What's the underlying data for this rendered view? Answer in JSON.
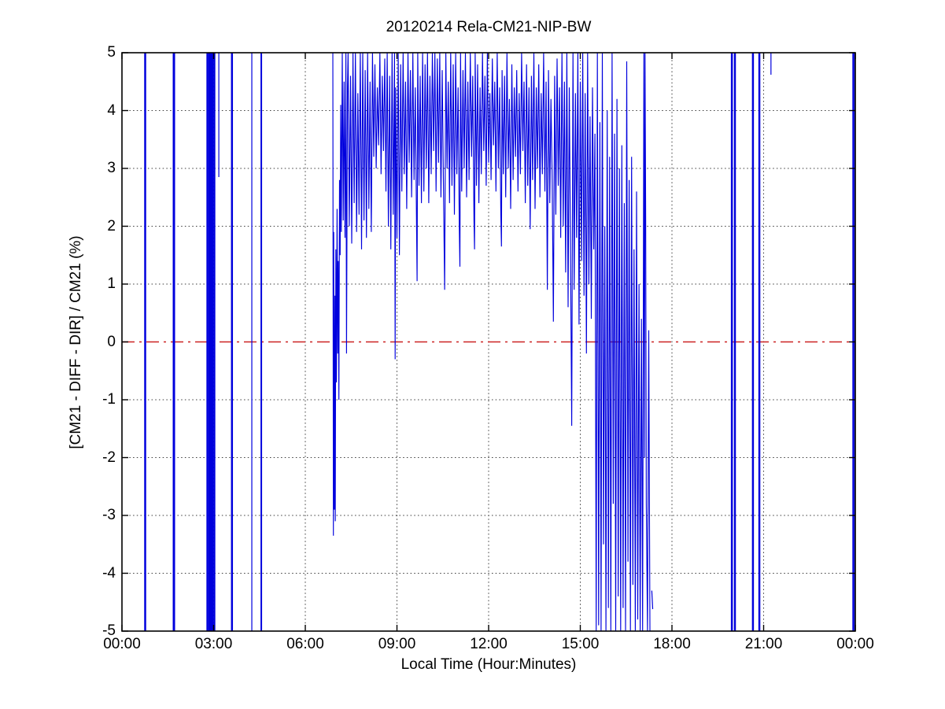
{
  "chart_data": {
    "type": "line",
    "title": "20120214 Rela-CM21-NIP-BW",
    "xlabel": "Local Time (Hour:Minutes)",
    "ylabel": "[CM21 - DIFF - DIR] / CM21 (%)",
    "xlim_hours": [
      0,
      24
    ],
    "ylim": [
      -5,
      5
    ],
    "x_tick_hours": [
      0,
      3,
      6,
      9,
      12,
      15,
      18,
      21,
      24
    ],
    "x_tick_labels": [
      "00:00",
      "03:00",
      "06:00",
      "09:00",
      "12:00",
      "15:00",
      "18:00",
      "21:00",
      "00:00"
    ],
    "y_tick_values": [
      -5,
      -4,
      -3,
      -2,
      -1,
      0,
      1,
      2,
      3,
      4,
      5
    ],
    "y_tick_labels": [
      "-5",
      "-4",
      "-3",
      "-2",
      "-1",
      "0",
      "1",
      "2",
      "3",
      "4",
      "5"
    ],
    "grid": "dotted",
    "legend": "none",
    "colors": {
      "series": "#0000dd",
      "zero_line": "#cc2222",
      "grid": "#3a3a3a",
      "axis": "#000000",
      "text": "#000000"
    },
    "zero_reference_line": {
      "y": 0,
      "style": "dash-dot"
    },
    "night_spikes": [
      {
        "hour": 0.76,
        "w": 2.5
      },
      {
        "hour": 1.7,
        "w": 3
      },
      {
        "hour": 2.79,
        "w": 2
      },
      {
        "hour": 2.85,
        "w": 3
      },
      {
        "hour": 2.91,
        "w": 2
      },
      {
        "hour": 2.97,
        "w": 3
      },
      {
        "hour": 3.03,
        "w": 2
      },
      {
        "hour": 3.6,
        "w": 2.5
      },
      {
        "hour": 4.25,
        "w": 1.2
      },
      {
        "hour": 4.56,
        "w": 2
      },
      {
        "hour": 19.96,
        "w": 2.5
      },
      {
        "hour": 20.06,
        "w": 2.5
      },
      {
        "hour": 20.65,
        "w": 2.5
      },
      {
        "hour": 20.86,
        "w": 2.5
      },
      {
        "hour": 23.93,
        "w": 2
      },
      {
        "hour": 23.99,
        "w": 2.5
      }
    ],
    "partial_spikes": [
      {
        "hour": 3.17,
        "from": 5,
        "to": 2.85,
        "w": 1.2
      },
      {
        "hour": 21.24,
        "from": 5,
        "to": 4.62,
        "w": 1.2
      }
    ],
    "isolated_segments": [
      {
        "x1": 17.34,
        "y1": -4.3,
        "x2": 17.37,
        "y2": -4.62
      }
    ],
    "day_series": [
      [
        6.9,
        5
      ],
      [
        6.92,
        -3.35
      ],
      [
        6.93,
        1.9
      ],
      [
        6.95,
        -2.9
      ],
      [
        6.97,
        0.8
      ],
      [
        6.98,
        -3.1
      ],
      [
        7.0,
        1.6
      ],
      [
        7.02,
        -0.7
      ],
      [
        7.04,
        2.3
      ],
      [
        7.06,
        -0.2
      ],
      [
        7.08,
        1.4
      ],
      [
        7.1,
        -1.0
      ],
      [
        7.12,
        2.8
      ],
      [
        7.14,
        1.5
      ],
      [
        7.16,
        4.1
      ],
      [
        7.18,
        1.9
      ],
      [
        7.21,
        5
      ],
      [
        7.24,
        2.1
      ],
      [
        7.27,
        4.5
      ],
      [
        7.3,
        1.8
      ],
      [
        7.33,
        5
      ],
      [
        7.35,
        -0.2
      ],
      [
        7.38,
        4.4
      ],
      [
        7.4,
        5
      ],
      [
        7.44,
        2.0
      ],
      [
        7.48,
        4.6
      ],
      [
        7.52,
        1.7
      ],
      [
        7.56,
        5
      ],
      [
        7.6,
        2.4
      ],
      [
        7.64,
        5
      ],
      [
        7.68,
        1.9
      ],
      [
        7.72,
        4.3
      ],
      [
        7.76,
        2.2
      ],
      [
        7.8,
        5
      ],
      [
        7.84,
        1.6
      ],
      [
        7.88,
        5
      ],
      [
        7.92,
        2.1
      ],
      [
        7.96,
        4.7
      ],
      [
        8.0,
        1.8
      ],
      [
        8.04,
        5
      ],
      [
        8.08,
        2.3
      ],
      [
        8.12,
        4.5
      ],
      [
        8.16,
        1.9
      ],
      [
        8.2,
        5
      ],
      [
        8.24,
        3.2
      ],
      [
        8.28,
        4.8
      ],
      [
        8.32,
        3.0
      ],
      [
        8.36,
        4.4
      ],
      [
        8.4,
        3.4
      ],
      [
        8.44,
        5
      ],
      [
        8.48,
        2.9
      ],
      [
        8.52,
        4.6
      ],
      [
        8.56,
        3.3
      ],
      [
        8.6,
        4.9
      ],
      [
        8.64,
        2.6
      ],
      [
        8.68,
        5
      ],
      [
        8.72,
        2.0
      ],
      [
        8.76,
        4.6
      ],
      [
        8.8,
        1.6
      ],
      [
        8.84,
        5
      ],
      [
        8.88,
        2.2
      ],
      [
        8.92,
        5
      ],
      [
        8.94,
        -0.3
      ],
      [
        8.96,
        4.4
      ],
      [
        9.0,
        1.8
      ],
      [
        9.04,
        5
      ],
      [
        9.08,
        1.5
      ],
      [
        9.12,
        4.8
      ],
      [
        9.16,
        2.6
      ],
      [
        9.2,
        5
      ],
      [
        9.24,
        2.9
      ],
      [
        9.28,
        4.5
      ],
      [
        9.32,
        2.3
      ],
      [
        9.36,
        5
      ],
      [
        9.4,
        3.1
      ],
      [
        9.44,
        4.7
      ],
      [
        9.48,
        2.5
      ],
      [
        9.52,
        5
      ],
      [
        9.56,
        2.8
      ],
      [
        9.6,
        4.4
      ],
      [
        9.64,
        2.0
      ],
      [
        9.66,
        1.05
      ],
      [
        9.68,
        5
      ],
      [
        9.72,
        2.7
      ],
      [
        9.76,
        4.6
      ],
      [
        9.8,
        2.4
      ],
      [
        9.84,
        5
      ],
      [
        9.88,
        2.6
      ],
      [
        9.92,
        4.8
      ],
      [
        9.96,
        3.0
      ],
      [
        10.0,
        5
      ],
      [
        10.04,
        2.4
      ],
      [
        10.08,
        4.6
      ],
      [
        10.12,
        2.9
      ],
      [
        10.16,
        5
      ],
      [
        10.2,
        3.3
      ],
      [
        10.24,
        5
      ],
      [
        10.28,
        2.6
      ],
      [
        10.32,
        4.9
      ],
      [
        10.36,
        3.1
      ],
      [
        10.4,
        5
      ],
      [
        10.44,
        2.5
      ],
      [
        10.48,
        4.7
      ],
      [
        10.52,
        2.8
      ],
      [
        10.56,
        0.9
      ],
      [
        10.6,
        5
      ],
      [
        10.64,
        3.0
      ],
      [
        10.68,
        4.5
      ],
      [
        10.72,
        2.4
      ],
      [
        10.76,
        5
      ],
      [
        10.8,
        2.7
      ],
      [
        10.84,
        4.8
      ],
      [
        10.88,
        2.2
      ],
      [
        10.92,
        5
      ],
      [
        10.96,
        2.9
      ],
      [
        11.0,
        4.4
      ],
      [
        11.04,
        2.0
      ],
      [
        11.06,
        1.3
      ],
      [
        11.08,
        5
      ],
      [
        11.12,
        2.6
      ],
      [
        11.16,
        4.7
      ],
      [
        11.2,
        3.0
      ],
      [
        11.24,
        5
      ],
      [
        11.28,
        2.5
      ],
      [
        11.32,
        4.5
      ],
      [
        11.36,
        2.8
      ],
      [
        11.4,
        5
      ],
      [
        11.44,
        3.2
      ],
      [
        11.48,
        4.6
      ],
      [
        11.52,
        2.1
      ],
      [
        11.54,
        1.6
      ],
      [
        11.56,
        5
      ],
      [
        11.6,
        2.7
      ],
      [
        11.64,
        4.8
      ],
      [
        11.68,
        2.4
      ],
      [
        11.72,
        4.4
      ],
      [
        11.76,
        2.9
      ],
      [
        11.8,
        5
      ],
      [
        11.84,
        3.3
      ],
      [
        11.88,
        4.6
      ],
      [
        11.92,
        2.7
      ],
      [
        11.96,
        5
      ],
      [
        12.0,
        3.1
      ],
      [
        12.04,
        4.3
      ],
      [
        12.08,
        2.8
      ],
      [
        12.12,
        4.9
      ],
      [
        12.16,
        3.4
      ],
      [
        12.2,
        4.5
      ],
      [
        12.24,
        2.6
      ],
      [
        12.28,
        5
      ],
      [
        12.32,
        3.0
      ],
      [
        12.36,
        4.4
      ],
      [
        12.4,
        2.2
      ],
      [
        12.42,
        1.65
      ],
      [
        12.44,
        4.7
      ],
      [
        12.48,
        2.9
      ],
      [
        12.52,
        4.6
      ],
      [
        12.56,
        2.5
      ],
      [
        12.6,
        5
      ],
      [
        12.64,
        3.0
      ],
      [
        12.68,
        4.2
      ],
      [
        12.72,
        2.3
      ],
      [
        12.76,
        4.8
      ],
      [
        12.8,
        2.8
      ],
      [
        12.84,
        4.4
      ],
      [
        12.88,
        3.2
      ],
      [
        12.92,
        4.7
      ],
      [
        12.96,
        2.6
      ],
      [
        13.0,
        4.3
      ],
      [
        13.04,
        2.9
      ],
      [
        13.08,
        5
      ],
      [
        13.12,
        3.3
      ],
      [
        13.16,
        4.5
      ],
      [
        13.2,
        2.4
      ],
      [
        13.24,
        4.8
      ],
      [
        13.28,
        2.7
      ],
      [
        13.32,
        4.4
      ],
      [
        13.36,
        1.95
      ],
      [
        13.4,
        4.6
      ],
      [
        13.44,
        2.8
      ],
      [
        13.48,
        5
      ],
      [
        13.52,
        2.3
      ],
      [
        13.56,
        4.4
      ],
      [
        13.6,
        3.0
      ],
      [
        13.64,
        4.8
      ],
      [
        13.68,
        2.5
      ],
      [
        13.72,
        4.3
      ],
      [
        13.76,
        2.9
      ],
      [
        13.8,
        5
      ],
      [
        13.84,
        2.6
      ],
      [
        13.88,
        4.5
      ],
      [
        13.92,
        0.9
      ],
      [
        13.96,
        4.7
      ],
      [
        14.0,
        2.4
      ],
      [
        14.04,
        4.2
      ],
      [
        14.08,
        2.8
      ],
      [
        14.12,
        0.35
      ],
      [
        14.16,
        4.6
      ],
      [
        14.2,
        2.2
      ],
      [
        14.24,
        4.9
      ],
      [
        14.28,
        2.7
      ],
      [
        14.32,
        4.4
      ],
      [
        14.36,
        1.8
      ],
      [
        14.4,
        5
      ],
      [
        14.44,
        2.0
      ],
      [
        14.48,
        4.5
      ],
      [
        14.52,
        1.2
      ],
      [
        14.56,
        5
      ],
      [
        14.6,
        0.6
      ],
      [
        14.64,
        4.4
      ],
      [
        14.68,
        1.5
      ],
      [
        14.72,
        -1.45
      ],
      [
        14.76,
        5
      ],
      [
        14.8,
        0.9
      ],
      [
        14.84,
        4.3
      ],
      [
        14.88,
        1.8
      ],
      [
        14.92,
        5
      ],
      [
        14.96,
        0.3
      ],
      [
        15.0,
        4.5
      ],
      [
        15.04,
        1.4
      ],
      [
        15.08,
        5
      ],
      [
        15.12,
        0.8
      ],
      [
        15.16,
        4.3
      ],
      [
        15.2,
        -0.2
      ],
      [
        15.24,
        5
      ],
      [
        15.28,
        1.0
      ],
      [
        15.32,
        3.9
      ],
      [
        15.36,
        0.4
      ],
      [
        15.4,
        4.4
      ],
      [
        15.44,
        1.6
      ],
      [
        15.48,
        3.6
      ],
      [
        15.52,
        -5
      ],
      [
        15.56,
        5
      ],
      [
        15.6,
        -4.9
      ],
      [
        15.64,
        3.8
      ],
      [
        15.68,
        -5
      ],
      [
        15.72,
        5
      ],
      [
        15.76,
        -3.5
      ],
      [
        15.8,
        2.0
      ],
      [
        15.84,
        -5
      ],
      [
        15.88,
        4.0
      ],
      [
        15.92,
        -4.6
      ],
      [
        15.96,
        3.2
      ],
      [
        16.0,
        -5
      ],
      [
        16.04,
        5
      ],
      [
        16.08,
        -2.8
      ],
      [
        16.12,
        3.6
      ],
      [
        16.16,
        -5
      ],
      [
        16.2,
        4.2
      ],
      [
        16.24,
        -4.4
      ],
      [
        16.28,
        3.0
      ],
      [
        16.32,
        -5
      ],
      [
        16.36,
        3.4
      ],
      [
        16.4,
        -4.6
      ],
      [
        16.44,
        2.4
      ],
      [
        16.48,
        -5
      ],
      [
        16.52,
        4.85
      ],
      [
        16.56,
        -3.8
      ],
      [
        16.6,
        2.8
      ],
      [
        16.64,
        -5
      ],
      [
        16.68,
        3.2
      ],
      [
        16.72,
        -4.2
      ],
      [
        16.76,
        1.6
      ],
      [
        16.8,
        -5
      ],
      [
        16.84,
        2.6
      ],
      [
        16.88,
        -4.8
      ],
      [
        16.92,
        1.0
      ],
      [
        16.96,
        -5
      ],
      [
        17.0,
        0.4
      ],
      [
        17.04,
        -5
      ],
      [
        17.08,
        5
      ],
      [
        17.1,
        -2.0
      ],
      [
        17.12,
        5
      ],
      [
        17.14,
        2.1
      ],
      [
        17.16,
        -2.8
      ],
      [
        17.2,
        -5
      ],
      [
        17.24,
        0.2
      ],
      [
        17.28,
        -5
      ]
    ]
  }
}
